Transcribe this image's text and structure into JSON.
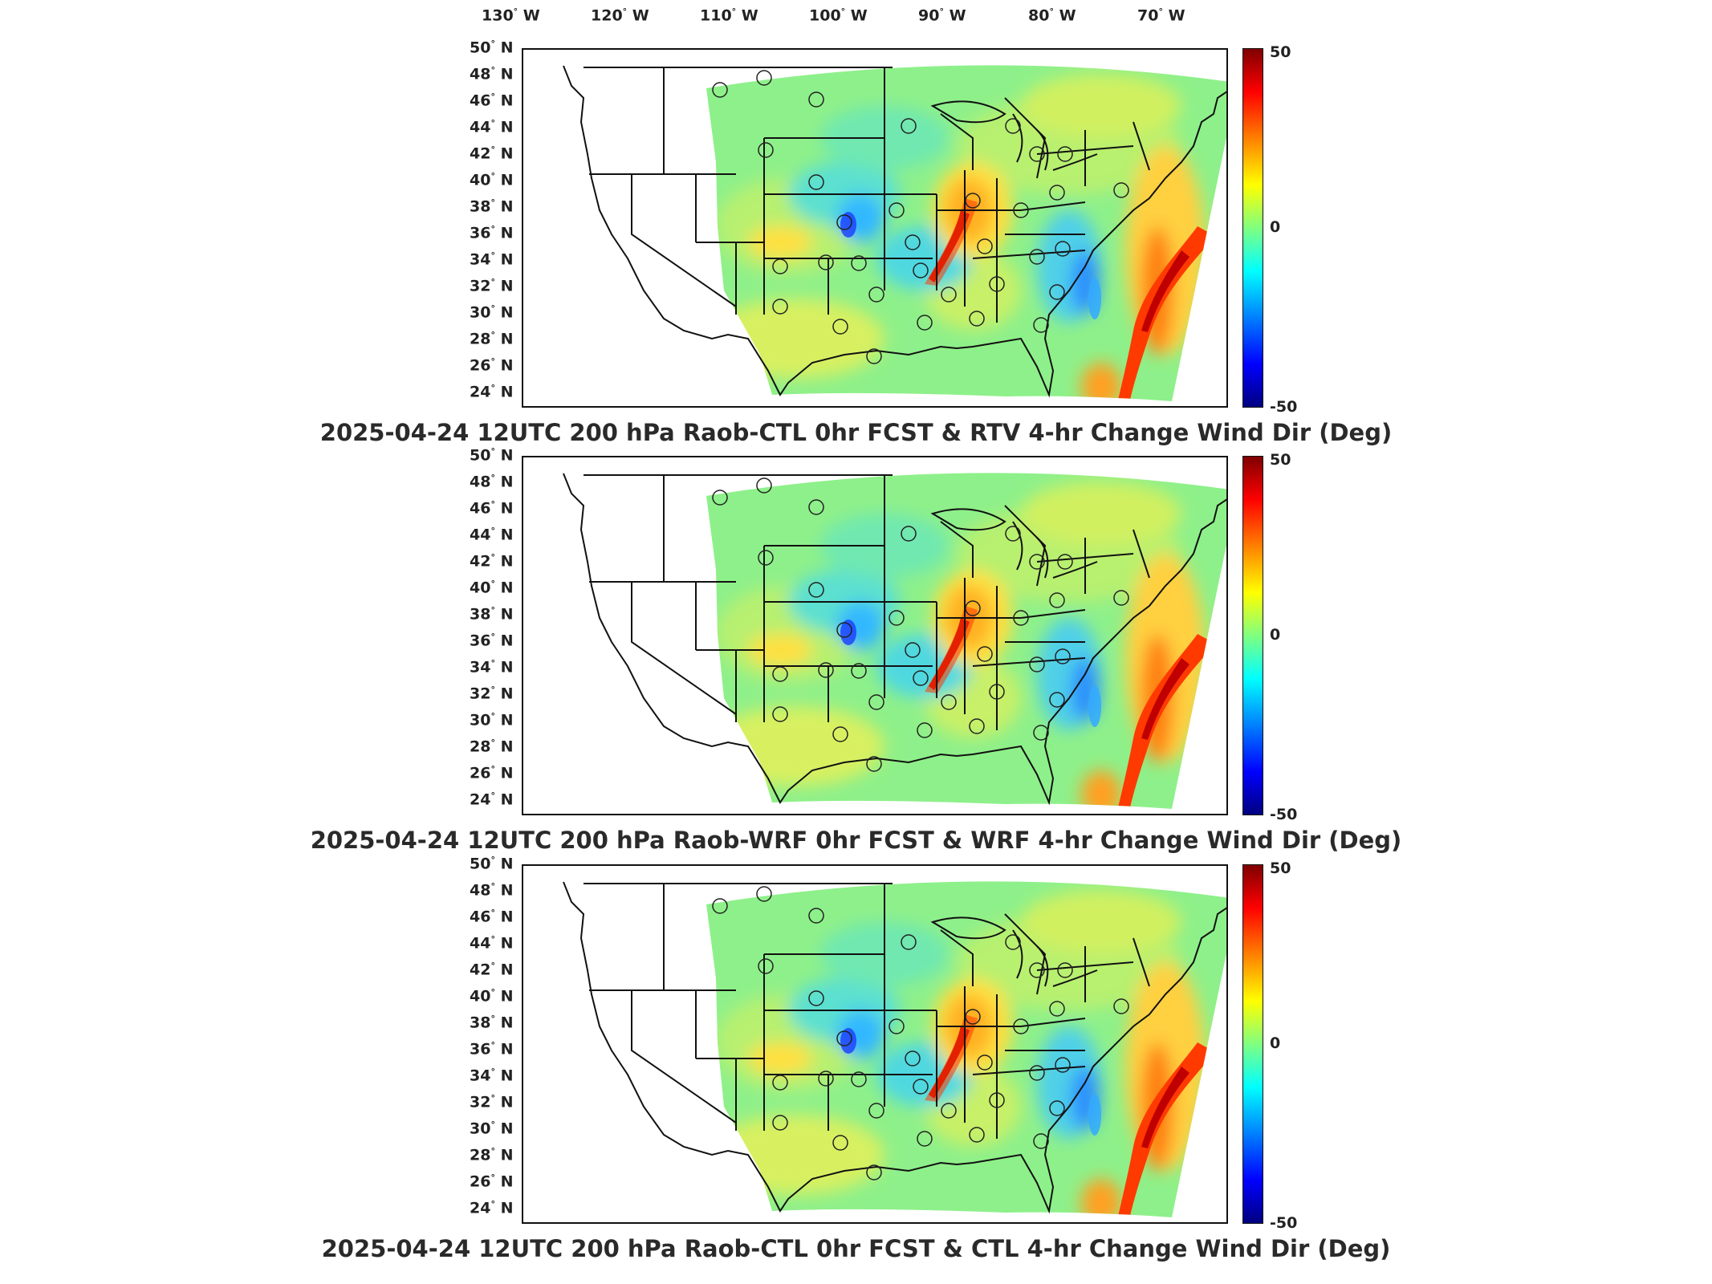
{
  "lon_labels": [
    {
      "deg": "130",
      "dir": "W"
    },
    {
      "deg": "120",
      "dir": "W"
    },
    {
      "deg": "110",
      "dir": "W"
    },
    {
      "deg": "100",
      "dir": "W"
    },
    {
      "deg": "90",
      "dir": "W"
    },
    {
      "deg": "80",
      "dir": "W"
    },
    {
      "deg": "70",
      "dir": "W"
    }
  ],
  "lat_labels": [
    {
      "deg": "50",
      "dir": "N"
    },
    {
      "deg": "48",
      "dir": "N"
    },
    {
      "deg": "46",
      "dir": "N"
    },
    {
      "deg": "44",
      "dir": "N"
    },
    {
      "deg": "42",
      "dir": "N"
    },
    {
      "deg": "40",
      "dir": "N"
    },
    {
      "deg": "38",
      "dir": "N"
    },
    {
      "deg": "36",
      "dir": "N"
    },
    {
      "deg": "34",
      "dir": "N"
    },
    {
      "deg": "32",
      "dir": "N"
    },
    {
      "deg": "30",
      "dir": "N"
    },
    {
      "deg": "28",
      "dir": "N"
    },
    {
      "deg": "26",
      "dir": "N"
    },
    {
      "deg": "24",
      "dir": "N"
    }
  ],
  "colorbar": {
    "max": "50",
    "mid": "0",
    "min": "-50",
    "colormap": "jet"
  },
  "panels": [
    {
      "title": "2025-04-24 12UTC 200 hPa Raob-CTL 0hr FCST & RTV 4-hr Change Wind Dir (Deg)"
    },
    {
      "title": "2025-04-24 12UTC 200 hPa Raob-WRF 0hr FCST & WRF 4-hr Change Wind Dir (Deg)"
    },
    {
      "title": "2025-04-24 12UTC 200 hPa Raob-CTL 0hr FCST & CTL 4-hr Change Wind Dir (Deg)"
    }
  ],
  "colors": {
    "field_base": "#8ef08a",
    "warm": "#ff3a00",
    "hot": "#c00000",
    "cool": "#33aaff",
    "cold": "#1a3cff",
    "outline": "#111111"
  }
}
